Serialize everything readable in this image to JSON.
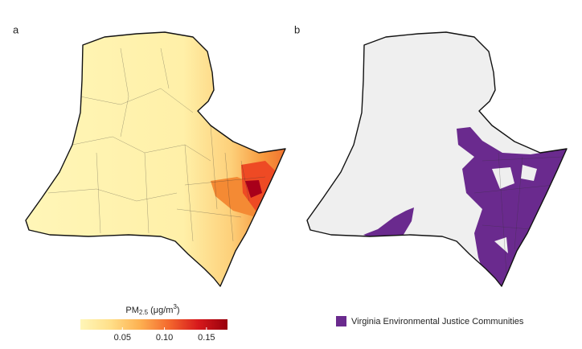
{
  "panels": [
    {
      "label": "a"
    },
    {
      "label": "b"
    }
  ],
  "colorbar": {
    "title": {
      "main": "PM",
      "sub": "2.5",
      "unit_open": " (μg/m",
      "sup": "3",
      "unit_close": ")"
    },
    "lim": [
      0,
      0.175
    ],
    "ticks": [
      0.05,
      {
        "value": 0.1,
        "label": "0.10"
      },
      0.15
    ],
    "colors": [
      "#fff6b8",
      "#ffe08a",
      "#fdb252",
      "#f4692e",
      "#d7191c",
      "#99000d"
    ]
  },
  "legend": {
    "label": "Virginia Environmental Justice Communities",
    "color": "#6a2a8e"
  }
}
